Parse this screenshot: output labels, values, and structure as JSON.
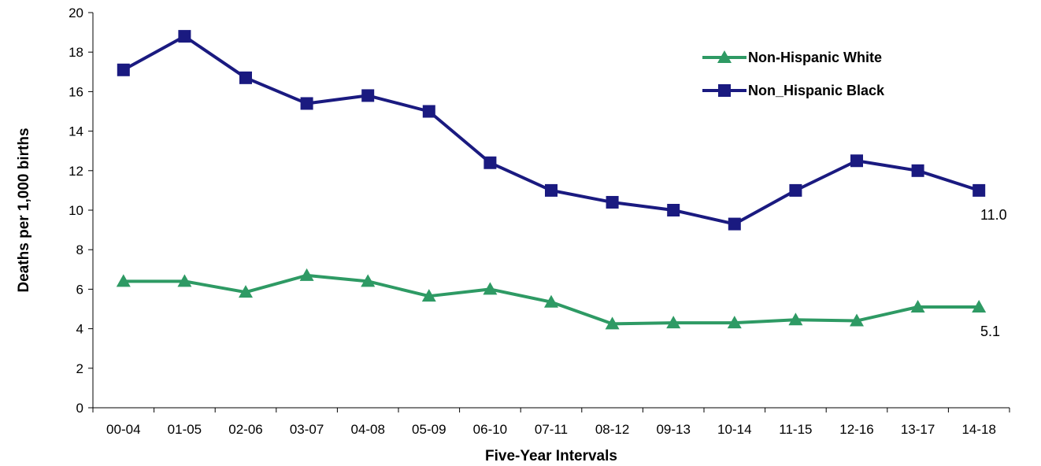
{
  "chart_data": {
    "type": "line",
    "categories": [
      "00-04",
      "01-05",
      "02-06",
      "03-07",
      "04-08",
      "05-09",
      "06-10",
      "07-11",
      "08-12",
      "09-13",
      "10-14",
      "11-15",
      "12-16",
      "13-17",
      "14-18"
    ],
    "series": [
      {
        "name": "Non-Hispanic White",
        "color": "#2e9a64",
        "marker": "triangle",
        "values": [
          6.4,
          6.4,
          5.85,
          6.7,
          6.4,
          5.65,
          6.0,
          5.35,
          4.25,
          4.3,
          4.3,
          4.45,
          4.4,
          5.1,
          5.1
        ],
        "end_label": "5.1"
      },
      {
        "name": "Non_Hispanic Black",
        "color": "#1a1a80",
        "marker": "square",
        "values": [
          17.1,
          18.8,
          16.7,
          15.4,
          15.8,
          15.0,
          12.4,
          11.0,
          10.4,
          10.0,
          9.3,
          11.0,
          12.5,
          12.0,
          11.0
        ],
        "end_label": "11.0"
      }
    ],
    "xlabel": "Five-Year Intervals",
    "ylabel": "Deaths per 1,000 births",
    "ylim": [
      0,
      20
    ],
    "yticks": [
      0,
      2,
      4,
      6,
      8,
      10,
      12,
      14,
      16,
      18,
      20
    ],
    "grid": false,
    "legend_position": "top-right"
  }
}
